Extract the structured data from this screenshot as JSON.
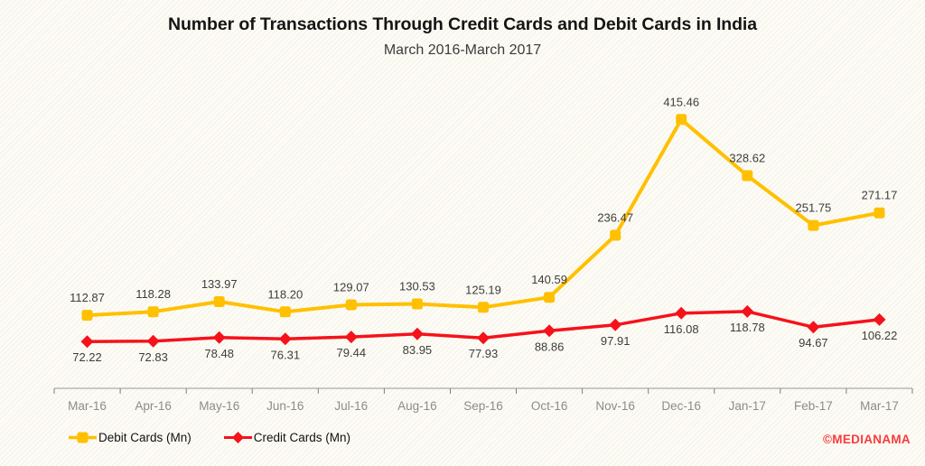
{
  "chart_data": {
    "type": "line",
    "title": "Number of Transactions Through Credit Cards and Debit Cards in India",
    "subtitle": "March 2016-March 2017",
    "xlabel": "",
    "ylabel": "",
    "categories": [
      "Mar-16",
      "Apr-16",
      "May-16",
      "Jun-16",
      "Jul-16",
      "Aug-16",
      "Sep-16",
      "Oct-16",
      "Nov-16",
      "Dec-16",
      "Jan-17",
      "Feb-17",
      "Mar-17"
    ],
    "series": [
      {
        "name": "Debit Cards (Mn)",
        "color": "#FFC000",
        "marker": "square",
        "line_width": 4,
        "label_position": "above",
        "values": [
          112.87,
          118.28,
          133.97,
          118.2,
          129.07,
          130.53,
          125.19,
          140.59,
          236.47,
          415.46,
          328.62,
          251.75,
          271.17
        ]
      },
      {
        "name": "Credit Cards (Mn)",
        "color": "#F5121B",
        "marker": "diamond",
        "line_width": 3.5,
        "label_position": "below",
        "values": [
          72.22,
          72.83,
          78.48,
          76.31,
          79.44,
          83.95,
          77.93,
          88.86,
          97.91,
          116.08,
          118.78,
          94.67,
          106.22
        ]
      }
    ],
    "ylim": [
      0,
      480
    ],
    "grid": false,
    "data_labels": true,
    "legend_position": "bottom-left",
    "axis_color": "#ababab",
    "tick_color": "#7f7f7f",
    "xlabel_color": "#8c8c8c",
    "datalabel_color": "#3d3d3d"
  },
  "watermark": {
    "text": "©MEDIANAMA",
    "color": "#FA3A3E"
  }
}
